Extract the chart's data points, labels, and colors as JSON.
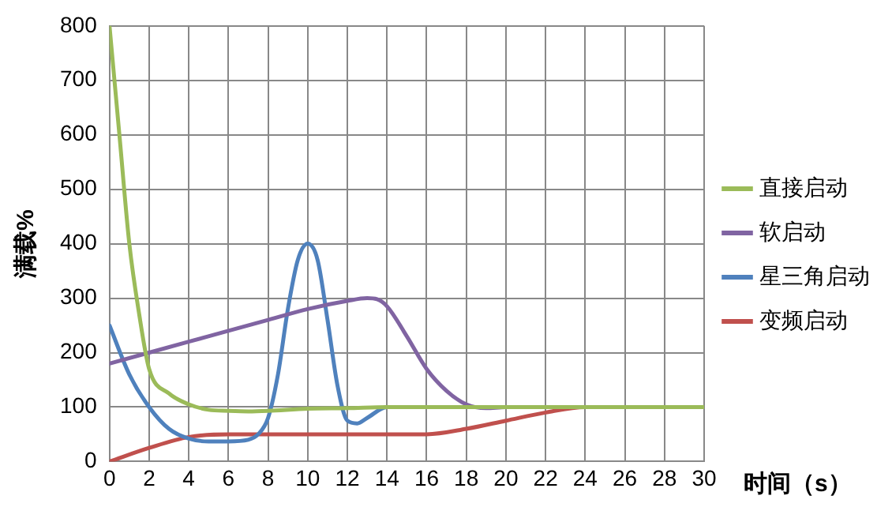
{
  "chart_data": {
    "type": "line",
    "xlabel": "时间（s）",
    "ylabel": "满载%",
    "xlim": [
      0,
      30
    ],
    "xticks": [
      0,
      2,
      4,
      6,
      8,
      10,
      12,
      14,
      16,
      18,
      20,
      22,
      24,
      26,
      28,
      30
    ],
    "ylim": [
      0,
      800
    ],
    "yticks": [
      0,
      100,
      200,
      300,
      400,
      500,
      600,
      700,
      800
    ],
    "grid": true,
    "legend": "right",
    "marker": "none",
    "line_style": "solid",
    "series": [
      {
        "name": "直接启动",
        "color": "#9bbb59",
        "x": [
          0,
          0.5,
          1,
          1.5,
          2,
          3,
          4,
          5,
          6,
          7,
          8,
          10,
          12,
          14,
          16,
          20,
          24,
          30
        ],
        "values": [
          800,
          600,
          400,
          270,
          170,
          125,
          105,
          95,
          93,
          92,
          93,
          97,
          98,
          100,
          100,
          100,
          100,
          100
        ]
      },
      {
        "name": "软启动",
        "color": "#8064a2",
        "x": [
          0,
          2,
          4,
          6,
          8,
          10,
          12,
          13,
          13.5,
          14,
          15,
          16,
          17,
          18,
          19,
          20,
          24,
          30
        ],
        "values": [
          180,
          200,
          220,
          240,
          260,
          280,
          295,
          300,
          298,
          285,
          230,
          170,
          130,
          105,
          98,
          100,
          100,
          100
        ]
      },
      {
        "name": "星三角启动",
        "color": "#4f81bd",
        "x": [
          0,
          1,
          2,
          3,
          4,
          5,
          6,
          7,
          7.5,
          8,
          8.5,
          9,
          9.5,
          10,
          10.5,
          11,
          11.5,
          12,
          12.5,
          13,
          14,
          16,
          20,
          24,
          30
        ],
        "values": [
          250,
          160,
          100,
          60,
          42,
          37,
          37,
          40,
          50,
          80,
          160,
          280,
          370,
          400,
          370,
          260,
          140,
          75,
          70,
          80,
          100,
          100,
          100,
          100,
          100
        ]
      },
      {
        "name": "变频启动",
        "color": "#c0504d",
        "x": [
          0,
          2,
          4,
          6,
          8,
          10,
          12,
          14,
          16,
          18,
          20,
          22,
          24,
          30
        ],
        "values": [
          0,
          25,
          45,
          50,
          50,
          50,
          50,
          50,
          50,
          60,
          75,
          90,
          100,
          100
        ]
      }
    ]
  }
}
